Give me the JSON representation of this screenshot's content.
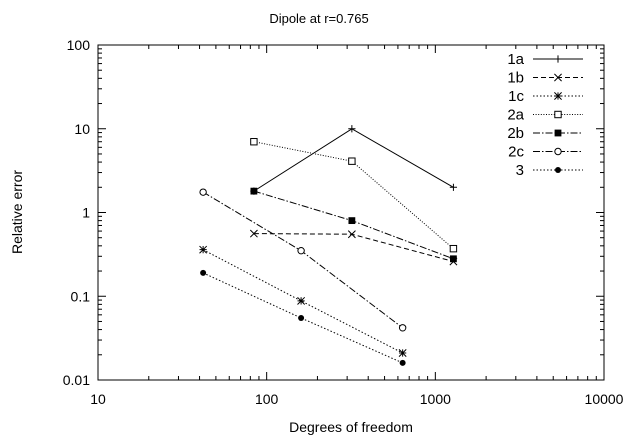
{
  "chart_data": {
    "type": "line",
    "title": "Dipole at r=0.765",
    "xlabel": "Degrees of freedom",
    "ylabel": "Relative error",
    "xscale": "log",
    "yscale": "log",
    "xlim": [
      10,
      10000
    ],
    "ylim": [
      0.01,
      100
    ],
    "xticks": [
      {
        "value": 10,
        "label": "10"
      },
      {
        "value": 100,
        "label": "100"
      },
      {
        "value": 1000,
        "label": "1000"
      },
      {
        "value": 10000,
        "label": "10000"
      }
    ],
    "yticks": [
      {
        "value": 0.01,
        "label": "0.01"
      },
      {
        "value": 0.1,
        "label": "0.1"
      },
      {
        "value": 1,
        "label": "1"
      },
      {
        "value": 10,
        "label": "10"
      },
      {
        "value": 100,
        "label": "100"
      }
    ],
    "grid": false,
    "legend_position": "top-right",
    "series": [
      {
        "name": "1a",
        "marker": "plus",
        "dash": "solid",
        "x": [
          84,
          320,
          1280
        ],
        "y": [
          1.8,
          10,
          2.0
        ]
      },
      {
        "name": "1b",
        "marker": "cross",
        "dash": "dashed",
        "x": [
          84,
          320,
          1280
        ],
        "y": [
          0.56,
          0.55,
          0.26
        ]
      },
      {
        "name": "1c",
        "marker": "star",
        "dash": "dotted",
        "x": [
          42,
          160,
          640
        ],
        "y": [
          0.36,
          0.088,
          0.021
        ]
      },
      {
        "name": "2a",
        "marker": "open-square",
        "dash": "fine-dotted",
        "x": [
          84,
          320,
          1280
        ],
        "y": [
          7.0,
          4.1,
          0.37
        ]
      },
      {
        "name": "2b",
        "marker": "filled-square",
        "dash": "dash-dot",
        "x": [
          84,
          320,
          1280
        ],
        "y": [
          1.8,
          0.8,
          0.28
        ]
      },
      {
        "name": "2c",
        "marker": "open-circle",
        "dash": "dash-dot",
        "x": [
          42,
          160,
          640
        ],
        "y": [
          1.75,
          0.35,
          0.042
        ]
      },
      {
        "name": "3",
        "marker": "filled-circle",
        "dash": "dotted",
        "x": [
          42,
          160,
          640
        ],
        "y": [
          0.19,
          0.055,
          0.016
        ]
      }
    ]
  }
}
